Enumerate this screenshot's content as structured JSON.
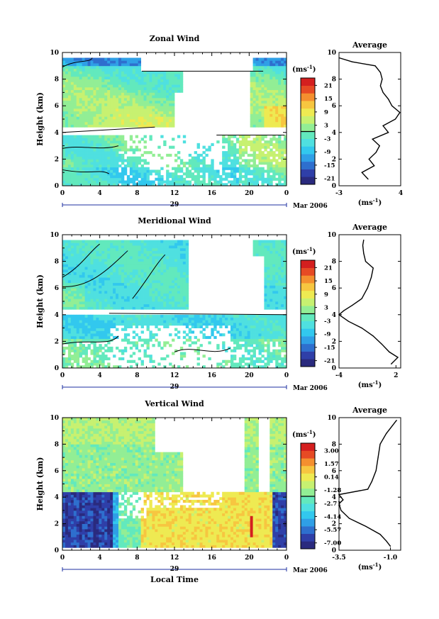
{
  "colors": {
    "scale": [
      "#2a2a7e",
      "#2f3fa8",
      "#2e6fce",
      "#2f9fe6",
      "#32c8ee",
      "#4fe0e0",
      "#62e9bd",
      "#92ee95",
      "#c7f171",
      "#eeea52",
      "#f7c640",
      "#f48f2f",
      "#e64a24",
      "#d41f1f"
    ],
    "zero_line": "#000000"
  },
  "x_axis": {
    "ticks": [
      "0",
      "4",
      "8",
      "12",
      "16",
      "20",
      "0"
    ],
    "day_label": "29",
    "month_label": "Mar 2006",
    "xlabel": "Local Time"
  },
  "chart_data": [
    {
      "type": "heatmap",
      "title": "Zonal Wind",
      "ylabel": "Height (km)",
      "ylim": [
        0,
        10
      ],
      "yticks": [
        "0",
        "2",
        "4",
        "6",
        "8",
        "10"
      ],
      "xlim": [
        0,
        24
      ],
      "colorbar": {
        "unit": "(ms",
        "unit_sup": "-1",
        "unit_close": ")",
        "labels": [
          "21",
          "15",
          "9",
          "3",
          "-3",
          "-9",
          "-15",
          "-21"
        ],
        "vmin": -24,
        "vmax": 24
      },
      "average": {
        "title": "Average",
        "xticks": [
          "-3",
          "4"
        ],
        "xlim": [
          -3,
          4
        ],
        "unit": "(ms",
        "unit_sup": "-1",
        "unit_close": ")",
        "heights": [
          0.5,
          1,
          1.5,
          2,
          2.5,
          3,
          3.5,
          4,
          4.5,
          5,
          5.5,
          6,
          6.5,
          7,
          7.5,
          8,
          8.5,
          9,
          9.3,
          9.6
        ],
        "values": [
          0.3,
          -0.4,
          1.0,
          0.4,
          1.2,
          1.6,
          0.8,
          2.6,
          2.0,
          3.4,
          3.9,
          3.0,
          2.6,
          2.0,
          1.7,
          1.9,
          1.7,
          1.1,
          -1.5,
          -3.0
        ]
      }
    },
    {
      "type": "heatmap",
      "title": "Meridional Wind",
      "ylabel": "Height (km)",
      "ylim": [
        0,
        10
      ],
      "yticks": [
        "0",
        "2",
        "4",
        "6",
        "8",
        "10"
      ],
      "xlim": [
        0,
        24
      ],
      "colorbar": {
        "unit": "(ms",
        "unit_sup": "-1",
        "unit_close": ")",
        "labels": [
          "21",
          "15",
          "9",
          "3",
          "-3",
          "-9",
          "-15",
          "-21"
        ],
        "vmin": -24,
        "vmax": 24
      },
      "average": {
        "title": "Average",
        "xticks": [
          "-4",
          "2"
        ],
        "xlim": [
          -4,
          2.5
        ],
        "unit": "(ms",
        "unit_sup": "-1",
        "unit_close": ")",
        "heights": [
          0.3,
          0.8,
          1.2,
          1.8,
          2.4,
          3.0,
          3.5,
          4.0,
          4.3,
          4.7,
          5.2,
          6.0,
          6.8,
          7.5,
          8.0,
          8.6,
          9.2,
          9.6
        ],
        "values": [
          1.5,
          2.2,
          1.3,
          0.5,
          -0.4,
          -1.6,
          -3.0,
          -4.0,
          -3.5,
          -2.6,
          -1.6,
          -1.0,
          -0.6,
          -0.4,
          -1.2,
          -1.4,
          -1.5,
          -1.4
        ]
      }
    },
    {
      "type": "heatmap",
      "title": "Vertical Wind",
      "ylabel": "Height (km)",
      "ylim": [
        0,
        10
      ],
      "yticks": [
        "0",
        "2",
        "4",
        "6",
        "8",
        "10"
      ],
      "xlim": [
        0,
        24
      ],
      "xlabel": "Local Time",
      "colorbar": {
        "unit": "(ms",
        "unit_sup": "-1",
        "unit_close": ")",
        "labels": [
          "3.00",
          "1.57",
          "0.14",
          "-1.28",
          "-2.71",
          "-4.14",
          "-5.57",
          "-7.00"
        ],
        "vmin": -7.7,
        "vmax": 3.7
      },
      "average": {
        "title": "Average",
        "xticks": [
          "-3.5",
          "-1.0"
        ],
        "xlim": [
          -3.5,
          -0.5
        ],
        "unit": "(ms",
        "unit_sup": "-1",
        "unit_close": ")",
        "heights": [
          0.3,
          0.7,
          1.2,
          1.8,
          2.4,
          3.0,
          3.5,
          3.8,
          4.2,
          4.6,
          5.2,
          6.0,
          7.0,
          8.0,
          8.8,
          9.4,
          9.8
        ],
        "values": [
          -1.0,
          -1.2,
          -1.5,
          -2.2,
          -3.0,
          -3.4,
          -3.5,
          -3.3,
          -3.5,
          -2.1,
          -1.9,
          -1.7,
          -1.6,
          -1.5,
          -1.2,
          -0.9,
          -0.7
        ]
      }
    }
  ]
}
